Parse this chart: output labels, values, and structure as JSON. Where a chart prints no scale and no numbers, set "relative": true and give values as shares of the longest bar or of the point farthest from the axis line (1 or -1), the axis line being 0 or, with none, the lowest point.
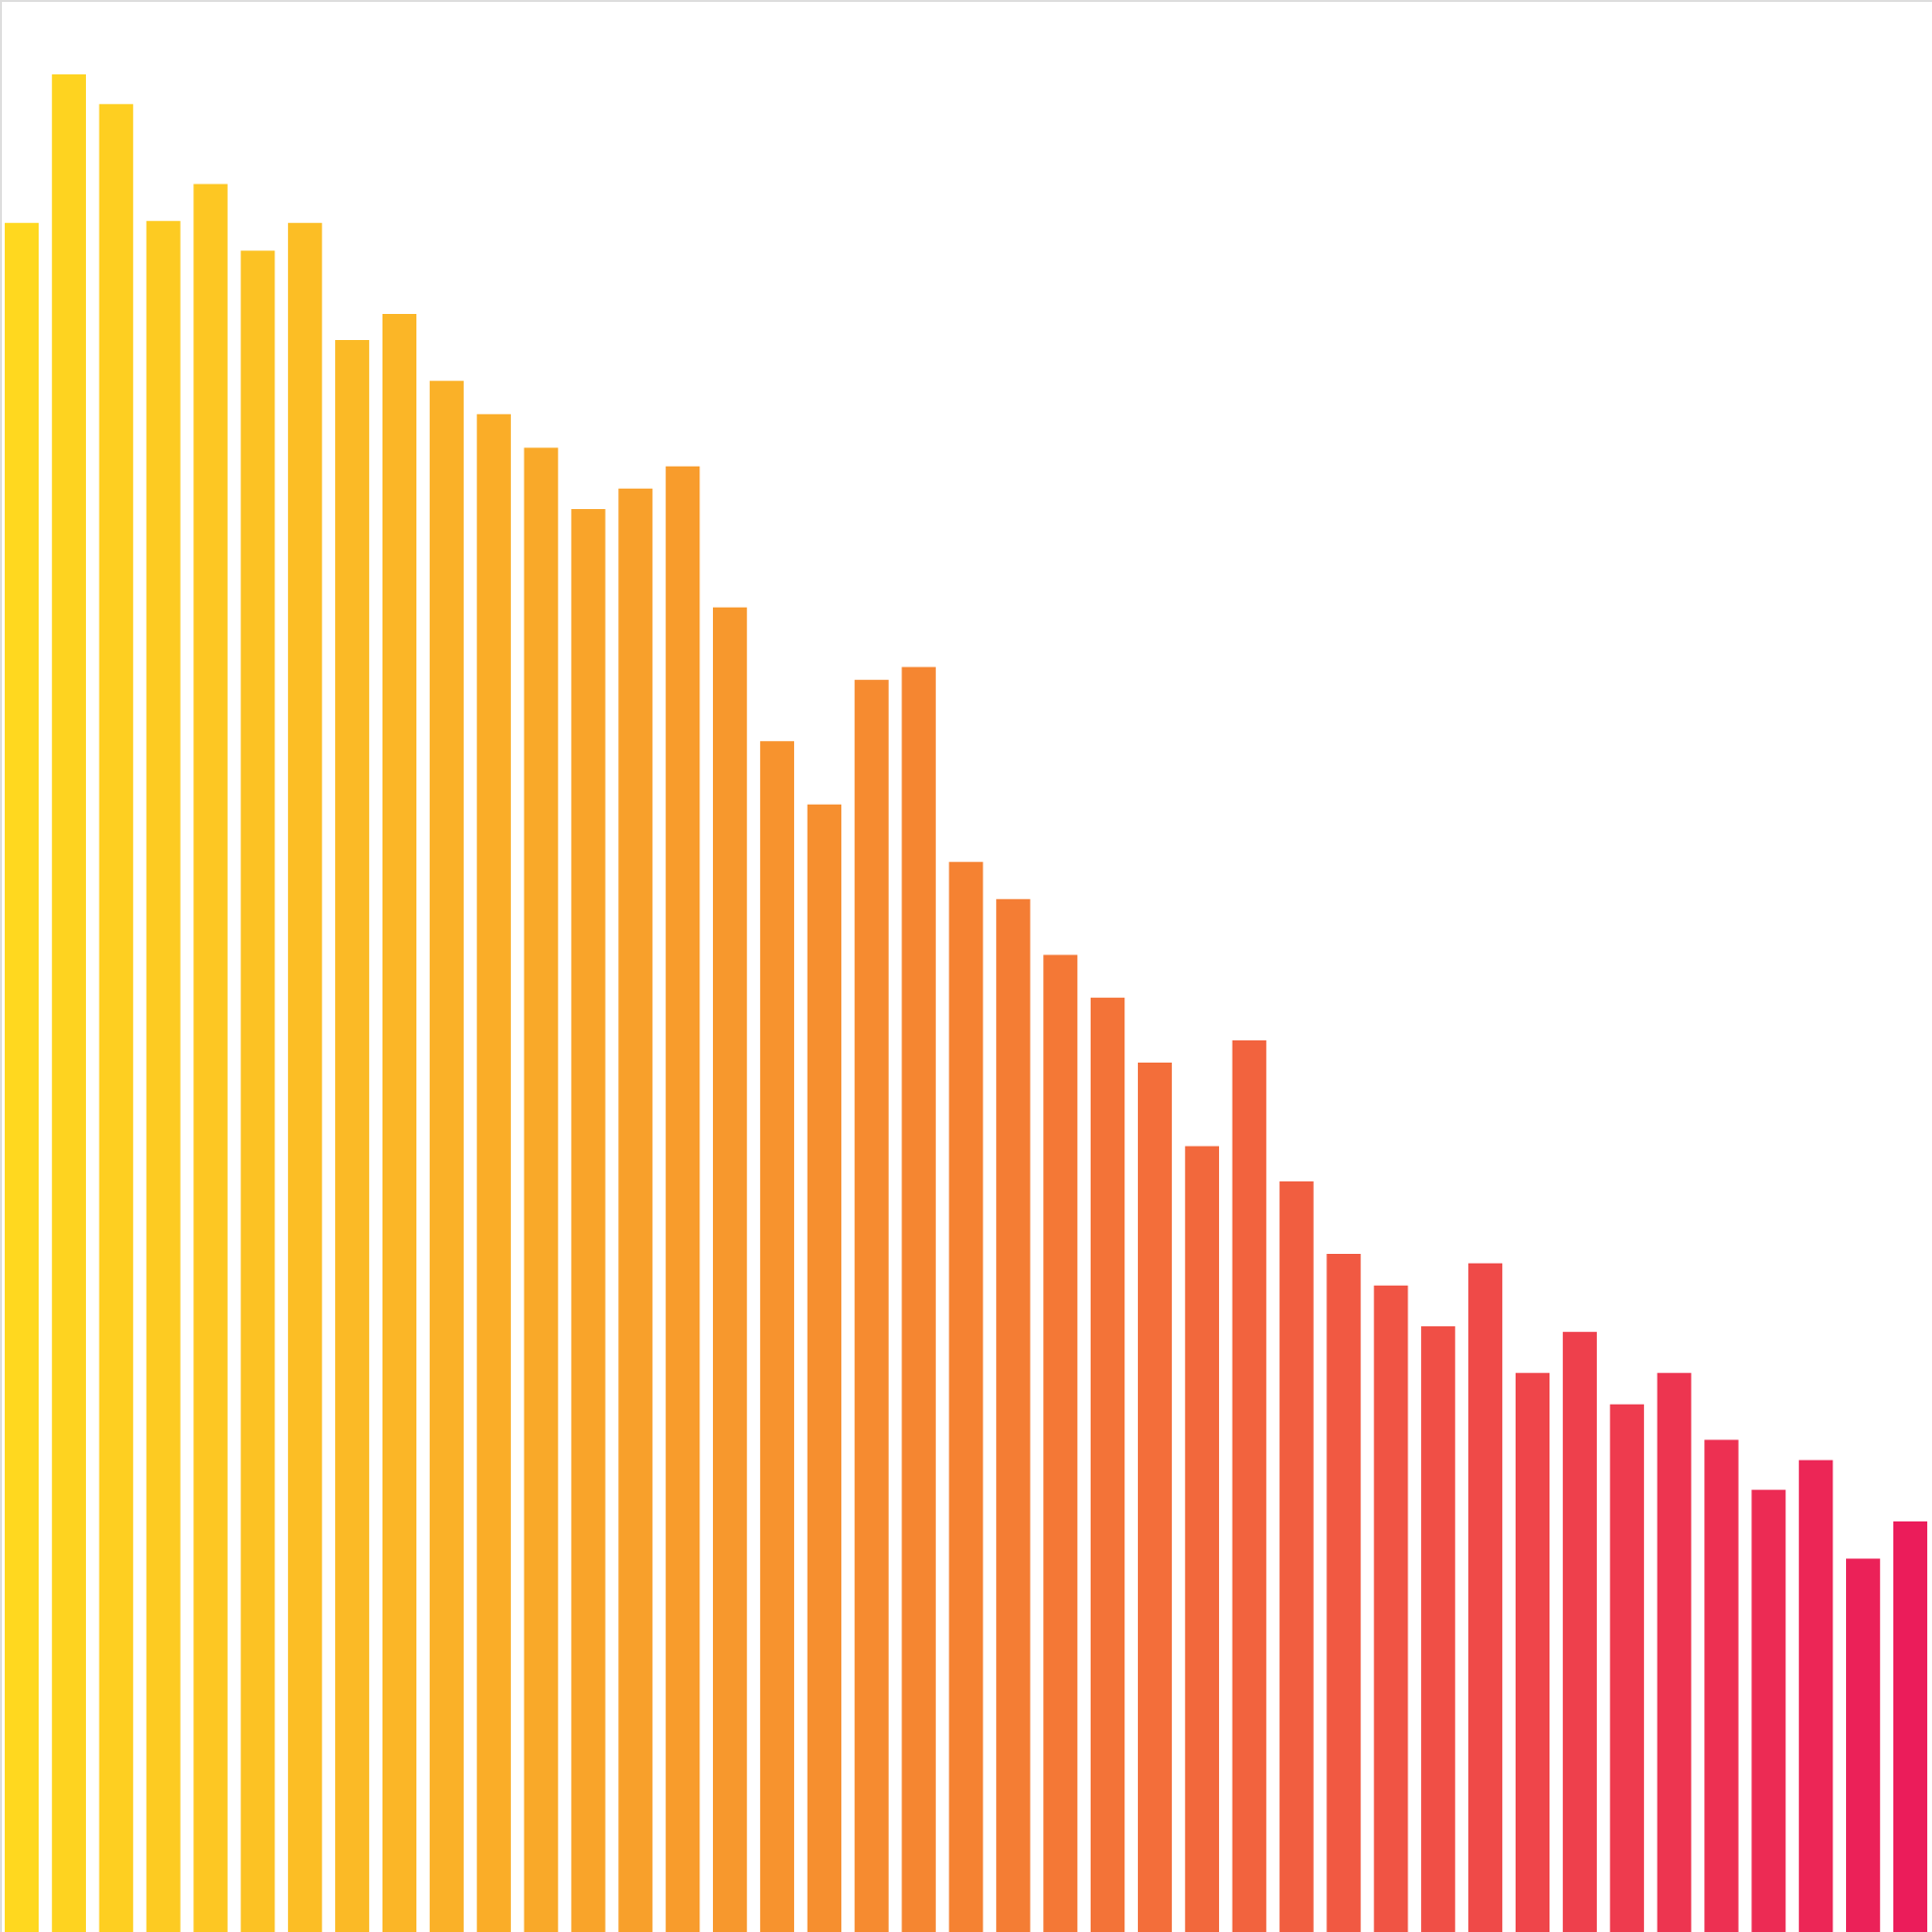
{
  "chart_data": {
    "type": "bar",
    "relative": true,
    "categories": [
      null,
      null,
      null,
      null,
      null,
      null,
      null,
      null,
      null,
      null,
      null,
      null,
      null,
      null,
      null,
      null,
      null,
      null,
      null,
      null,
      null,
      null,
      null,
      null,
      null,
      null,
      null,
      null,
      null,
      null,
      null,
      null,
      null,
      null,
      null,
      null,
      null,
      null,
      null,
      null,
      null
    ],
    "values": [
      0.92,
      1,
      0.984,
      0.921,
      0.941,
      0.905,
      0.92,
      0.857,
      0.871,
      0.835,
      0.817,
      0.799,
      0.766,
      0.777,
      0.789,
      0.713,
      0.641,
      0.607,
      0.674,
      0.681,
      0.576,
      0.556,
      0.526,
      0.503,
      0.468,
      0.423,
      0.48,
      0.404,
      0.365,
      0.348,
      0.326,
      0.36,
      0.301,
      0.323,
      0.284,
      0.301,
      0.265,
      0.238,
      0.254,
      0.201,
      0.221
    ],
    "colors": [
      "#ffd81f",
      "#fed320",
      "#fecf21",
      "#fdcb22",
      "#fdc723",
      "#fcc224",
      "#fcbe25",
      "#fbba26",
      "#fbb627",
      "#fab128",
      "#faad28",
      "#f9a929",
      "#f9a42a",
      "#f8a02b",
      "#f89c2c",
      "#f7982d",
      "#f7932e",
      "#f68f2f",
      "#f68b30",
      "#f58631",
      "#f58232",
      "#f47d34",
      "#f47836",
      "#f37338",
      "#f36e3a",
      "#f2683c",
      "#f2633e",
      "#f15e40",
      "#f15942",
      "#f05444",
      "#f04f46",
      "#ef4a48",
      "#ef454a",
      "#ee404c",
      "#ee3b4e",
      "#ed3550",
      "#ed3052",
      "#ec2b54",
      "#ec2656",
      "#eb2158",
      "#eb1c5a"
    ]
  }
}
